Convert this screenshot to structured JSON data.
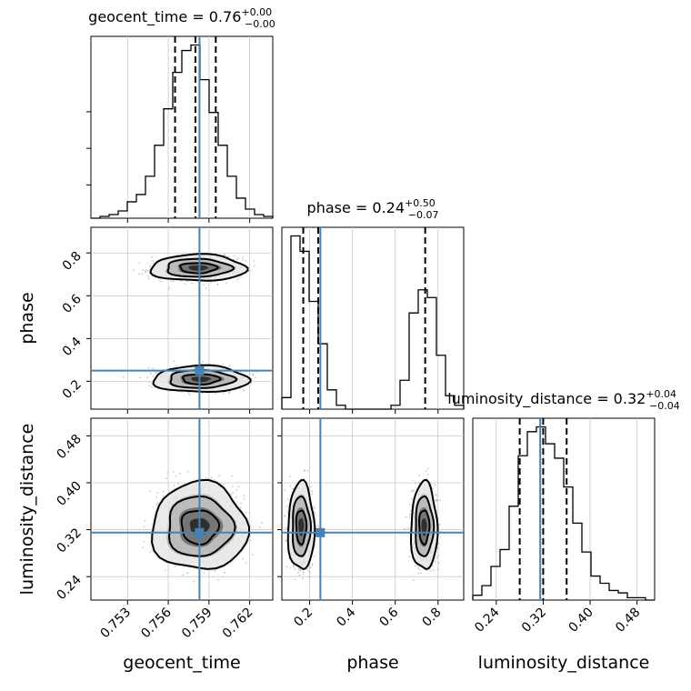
{
  "chart_data": {
    "type": "corner",
    "parameters": [
      "geocent_time",
      "phase",
      "luminosity_distance"
    ],
    "colors": {
      "truth": "#4682b4",
      "line": "#000000",
      "grid": "#c8c8c8",
      "scatter": "#9a9a9a"
    },
    "grid": true,
    "truths": {
      "geocent_time": 0.7583,
      "phase": 0.25,
      "luminosity_distance": 0.315
    },
    "axes": {
      "geocent_time": {
        "range": [
          0.7503,
          0.7637
        ],
        "ticks": [
          "0.753",
          "0.756",
          "0.759",
          "0.762"
        ],
        "tick_values": [
          0.753,
          0.756,
          0.759,
          0.762
        ]
      },
      "phase": {
        "range": [
          0.07,
          0.92
        ],
        "ticks": [
          "0.2",
          "0.4",
          "0.6",
          "0.8"
        ],
        "tick_values": [
          0.2,
          0.4,
          0.6,
          0.8
        ]
      },
      "luminosity_distance": {
        "range": [
          0.2,
          0.51
        ],
        "ticks": [
          "0.24",
          "0.32",
          "0.40",
          "0.48"
        ],
        "tick_values": [
          0.24,
          0.32,
          0.4,
          0.48
        ]
      }
    },
    "titles": {
      "geocent_time": {
        "text": "geocent_time = 0.76",
        "plus": "+0.00",
        "minus": "−0.00"
      },
      "phase": {
        "text": "phase = 0.24",
        "plus": "+0.50",
        "minus": "−0.07"
      },
      "luminosity_distance": {
        "text": "luminosity_distance = 0.32",
        "plus": "+0.04",
        "minus": "−0.04"
      }
    },
    "quantiles": {
      "geocent_time": [
        0.7565,
        0.758,
        0.7595
      ],
      "phase": [
        0.17,
        0.24,
        0.74
      ],
      "luminosity_distance": [
        0.28,
        0.32,
        0.36
      ]
    },
    "histograms": {
      "geocent_time": {
        "edges": [
          0.7503,
          0.75097,
          0.75164,
          0.75231,
          0.75298,
          0.75365,
          0.75432,
          0.75499,
          0.75566,
          0.75633,
          0.757,
          0.75767,
          0.75834,
          0.75901,
          0.75968,
          0.76035,
          0.76102,
          0.76169,
          0.76236,
          0.76303,
          0.7637
        ],
        "counts": [
          0,
          1,
          2,
          4,
          9,
          13,
          23,
          40,
          60,
          80,
          92,
          95,
          76,
          58,
          40,
          23,
          11,
          5,
          2,
          1
        ]
      },
      "phase": {
        "edges": [
          0.07,
          0.1125,
          0.155,
          0.1975,
          0.24,
          0.2825,
          0.325,
          0.3675,
          0.41,
          0.4525,
          0.495,
          0.5375,
          0.58,
          0.6225,
          0.665,
          0.7075,
          0.75,
          0.7925,
          0.835,
          0.8775,
          0.92
        ],
        "counts": [
          6,
          90,
          82,
          56,
          34,
          10,
          2,
          0,
          0,
          0,
          0,
          0,
          2,
          15,
          50,
          62,
          58,
          28,
          7,
          2
        ]
      },
      "luminosity_distance": {
        "edges": [
          0.2,
          0.2155,
          0.231,
          0.2465,
          0.262,
          0.2775,
          0.293,
          0.3085,
          0.324,
          0.3395,
          0.355,
          0.3705,
          0.386,
          0.4015,
          0.417,
          0.4325,
          0.448,
          0.4635,
          0.479,
          0.4945,
          0.51
        ],
        "counts": [
          2,
          6,
          14,
          21,
          39,
          60,
          70,
          72,
          65,
          59,
          47,
          32,
          20,
          10,
          7,
          4,
          3,
          1,
          1,
          0
        ]
      }
    },
    "contour_levels": [
      "1-sigma",
      "2-sigma",
      "3-sigma"
    ]
  }
}
